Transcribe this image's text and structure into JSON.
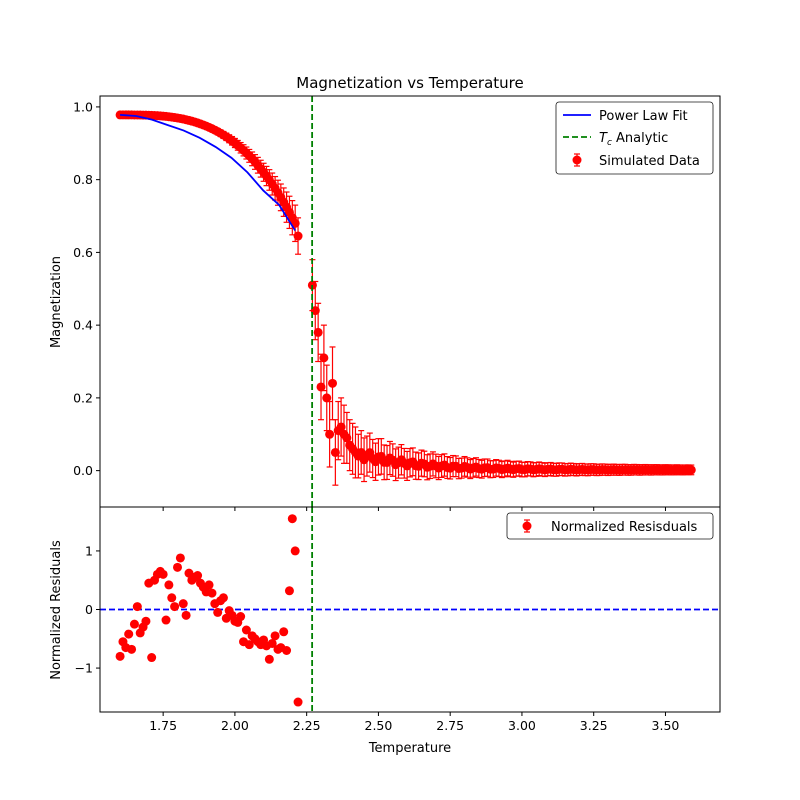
{
  "colors": {
    "data_point": "#ff0000",
    "errorbar": "#ff0000",
    "fit_line": "#0000ff",
    "tc_line": "#008000",
    "zero_line": "#0000ff"
  },
  "chart_data": [
    {
      "type": "scatter",
      "title": "Magnetization vs Temperature",
      "xlabel": "",
      "ylabel": "Magnetization",
      "xlim": [
        1.53,
        3.69
      ],
      "ylim": [
        -0.1,
        1.03
      ],
      "x_ticks": [
        1.75,
        2.0,
        2.25,
        2.5,
        2.75,
        3.0,
        3.25,
        3.5
      ],
      "y_ticks": [
        0.0,
        0.2,
        0.4,
        0.6,
        0.8,
        1.0
      ],
      "y_tick_labels": [
        "0.0",
        "0.2",
        "0.4",
        "0.6",
        "0.8",
        "1.0"
      ],
      "grid": false,
      "legend_position": "upper right",
      "legend": {
        "fit": "Power Law Fit",
        "tc_prefix": "T",
        "tc_subscript": "c",
        "tc_suffix": " Analytic",
        "data": "Simulated Data"
      },
      "tc_analytic": 2.269,
      "simulated_data": {
        "low_T": {
          "x_start": 1.6,
          "x_step": 0.01,
          "count": 62,
          "y_at_x_start": 0.978,
          "shape": "power law decreasing toward Tc",
          "y_at_last": 0.68,
          "error_grows_to": 0.05
        },
        "points": [
          {
            "x": 2.22,
            "y": 0.645,
            "err": 0.05
          },
          {
            "x": 2.27,
            "y": 0.51,
            "err": 0.07
          },
          {
            "x": 2.28,
            "y": 0.44,
            "err": 0.08
          },
          {
            "x": 2.29,
            "y": 0.38,
            "err": 0.08
          },
          {
            "x": 2.3,
            "y": 0.23,
            "err": 0.09
          },
          {
            "x": 2.31,
            "y": 0.31,
            "err": 0.09
          },
          {
            "x": 2.32,
            "y": 0.2,
            "err": 0.09
          },
          {
            "x": 2.33,
            "y": 0.1,
            "err": 0.09
          },
          {
            "x": 2.34,
            "y": 0.24,
            "err": 0.1
          },
          {
            "x": 2.35,
            "y": 0.05,
            "err": 0.09
          },
          {
            "x": 2.36,
            "y": 0.11,
            "err": 0.08
          },
          {
            "x": 2.37,
            "y": 0.12,
            "err": 0.08
          },
          {
            "x": 2.38,
            "y": 0.1,
            "err": 0.08
          },
          {
            "x": 2.39,
            "y": 0.09,
            "err": 0.07
          },
          {
            "x": 2.4,
            "y": 0.07,
            "err": 0.07
          },
          {
            "x": 2.41,
            "y": 0.06,
            "err": 0.07
          },
          {
            "x": 2.42,
            "y": 0.05,
            "err": 0.07
          },
          {
            "x": 2.43,
            "y": 0.04,
            "err": 0.06
          },
          {
            "x": 2.44,
            "y": 0.05,
            "err": 0.06
          },
          {
            "x": 2.45,
            "y": 0.03,
            "err": 0.06
          }
        ],
        "high_T": {
          "x_start": 2.46,
          "x_end": 3.59,
          "x_step": 0.01,
          "y_decay_from": 0.04,
          "y_decay_to": 0.002,
          "error_from": 0.055,
          "error_to": 0.012
        }
      },
      "power_law_fit": {
        "x_start": 1.6,
        "x_end": 2.21,
        "y_values": [
          0.978,
          0.975,
          0.965,
          0.95,
          0.935,
          0.915,
          0.89,
          0.86,
          0.82,
          0.77,
          0.73,
          0.66
        ]
      }
    },
    {
      "type": "scatter",
      "title": "",
      "xlabel": "Temperature",
      "ylabel": "Normalized Residuals",
      "xlim": [
        1.53,
        3.69
      ],
      "ylim": [
        -1.75,
        1.75
      ],
      "x_ticks": [
        1.75,
        2.0,
        2.25,
        2.5,
        2.75,
        3.0,
        3.25,
        3.5
      ],
      "x_tick_labels": [
        "1.75",
        "2.00",
        "2.25",
        "2.50",
        "2.75",
        "3.00",
        "3.25",
        "3.50"
      ],
      "y_ticks": [
        -1,
        0,
        1
      ],
      "y_tick_labels": [
        "−1",
        "0",
        "1"
      ],
      "grid": false,
      "legend_position": "upper right",
      "legend": {
        "data": "Normalized Resisduals"
      },
      "zero_line": 0,
      "tc_analytic": 2.269,
      "residuals": {
        "x": [
          1.6,
          1.61,
          1.62,
          1.63,
          1.64,
          1.65,
          1.66,
          1.67,
          1.68,
          1.69,
          1.7,
          1.71,
          1.72,
          1.73,
          1.74,
          1.75,
          1.76,
          1.77,
          1.78,
          1.79,
          1.8,
          1.81,
          1.82,
          1.83,
          1.84,
          1.85,
          1.86,
          1.87,
          1.88,
          1.89,
          1.9,
          1.91,
          1.92,
          1.93,
          1.94,
          1.95,
          1.96,
          1.97,
          1.98,
          1.99,
          2.0,
          2.01,
          2.02,
          2.03,
          2.04,
          2.05,
          2.06,
          2.07,
          2.08,
          2.09,
          2.1,
          2.11,
          2.12,
          2.13,
          2.14,
          2.15,
          2.16,
          2.17,
          2.18,
          2.19,
          2.2,
          2.21,
          2.22
        ],
        "y": [
          -0.8,
          -0.55,
          -0.65,
          -0.42,
          -0.68,
          -0.25,
          0.05,
          -0.4,
          -0.3,
          -0.2,
          0.45,
          -0.82,
          0.5,
          0.6,
          0.65,
          0.6,
          -0.18,
          0.42,
          0.2,
          0.05,
          0.72,
          0.88,
          0.1,
          -0.1,
          0.62,
          0.5,
          0.55,
          0.58,
          0.45,
          0.38,
          0.3,
          0.42,
          0.28,
          0.1,
          -0.05,
          0.15,
          0.2,
          -0.15,
          -0.02,
          -0.1,
          -0.2,
          -0.22,
          -0.12,
          -0.55,
          -0.35,
          -0.6,
          -0.45,
          -0.5,
          -0.55,
          -0.6,
          -0.52,
          -0.62,
          -0.85,
          -0.58,
          -0.45,
          -0.68,
          -0.65,
          -0.38,
          -0.7,
          0.32,
          1.55,
          1.0,
          -1.58
        ]
      }
    }
  ]
}
